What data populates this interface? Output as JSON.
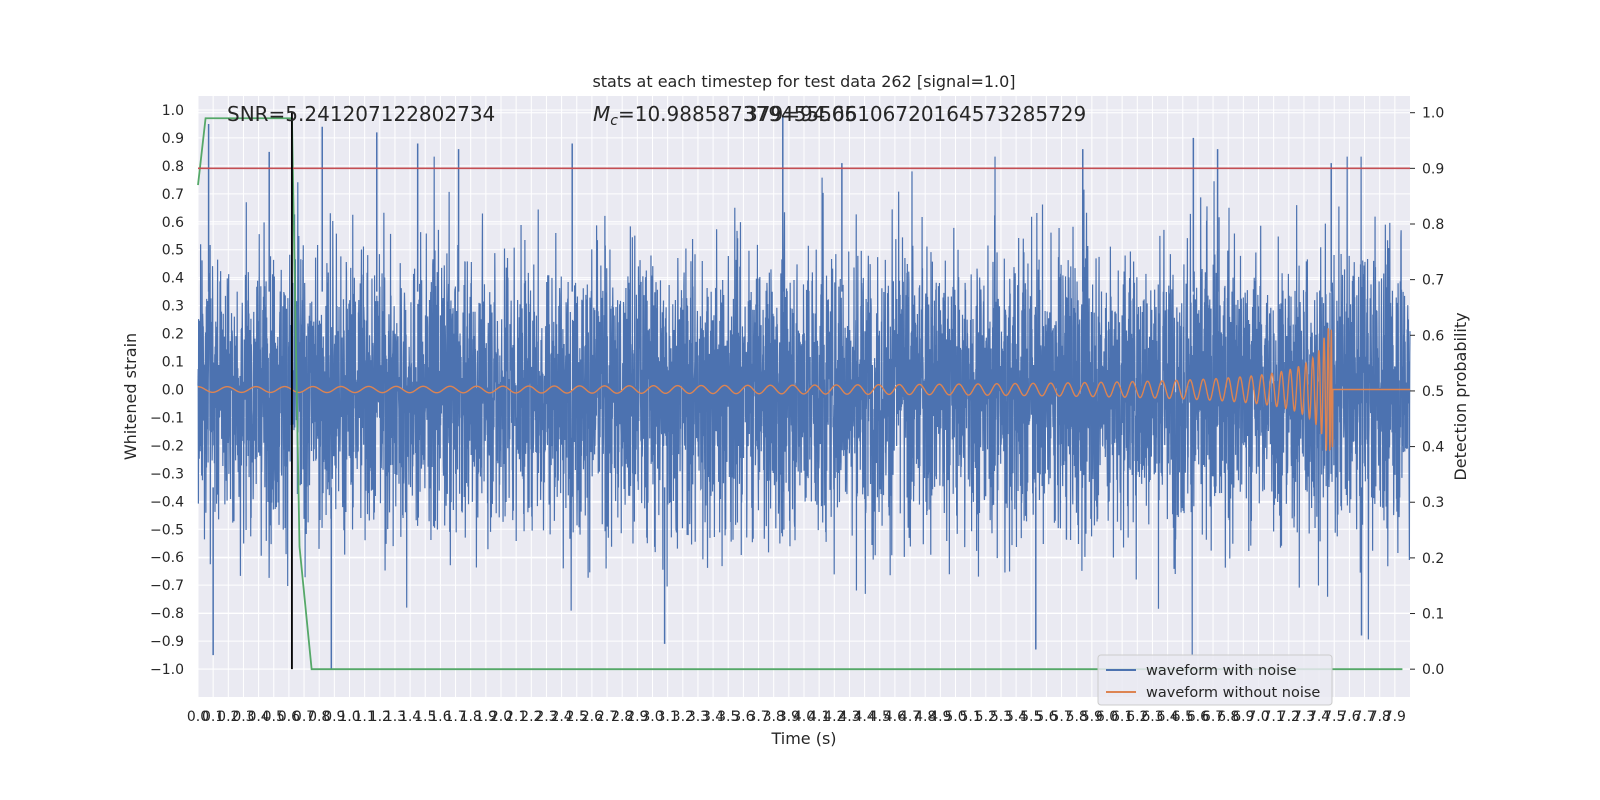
{
  "chart_data": {
    "type": "line",
    "title": "stats at each timestep for test data 262 [signal=1.0]",
    "xlabel": "Time (s)",
    "ylabel_left": "Whitened strain",
    "ylabel_right": "Detection probability",
    "xlim": [
      0.0,
      8.0
    ],
    "ylim_left": [
      -1.1,
      1.05
    ],
    "ylim_right": [
      -0.05,
      1.03
    ],
    "grid": true,
    "x_tick_step": 0.1,
    "x_tick_max": 7.9,
    "y_left_ticks": [
      -1.0,
      -0.9,
      -0.8,
      -0.7,
      -0.6,
      -0.5,
      -0.4,
      -0.3,
      -0.2,
      -0.1,
      0.0,
      0.1,
      0.2,
      0.3,
      0.4,
      0.5,
      0.6,
      0.7,
      0.8,
      0.9,
      1.0
    ],
    "y_right_ticks": [
      0.0,
      0.1,
      0.2,
      0.3,
      0.4,
      0.5,
      0.6,
      0.7,
      0.8,
      0.9,
      1.0
    ],
    "annotations": {
      "snr": "SNR=5.241207122802734",
      "mc": "=10.988587379455566",
      "mc_symbol": "M",
      "mc_sub": "c",
      "overlap": "=94.05106720164573285729",
      "overlap_prefix": "379"
    },
    "series": [
      {
        "name": "waveform with noise",
        "color": "#4c72b0",
        "axis": "left",
        "description_only": false,
        "envelope": {
          "typical_range": [
            -0.45,
            0.45
          ],
          "min_observed": -1.0,
          "max_observed": 0.98
        },
        "notable_peaks": [
          [
            0.07,
            0.95
          ],
          [
            0.1,
            -0.95
          ],
          [
            0.47,
            0.85
          ],
          [
            0.82,
            0.94
          ],
          [
            0.88,
            -1.0
          ],
          [
            1.18,
            0.92
          ],
          [
            1.45,
            0.88
          ],
          [
            1.72,
            0.86
          ],
          [
            2.47,
            0.88
          ],
          [
            3.08,
            -0.91
          ],
          [
            3.86,
            0.98
          ],
          [
            4.25,
            0.81
          ],
          [
            5.84,
            0.86
          ],
          [
            5.53,
            -0.93
          ],
          [
            6.57,
            0.9
          ],
          [
            6.73,
            0.86
          ],
          [
            7.48,
            0.81
          ],
          [
            7.68,
            -0.88
          ]
        ]
      },
      {
        "name": "waveform without noise",
        "color": "#dd8452",
        "axis": "left",
        "chirp": {
          "start_time": 0.0,
          "merger_time": 7.49,
          "initial_amplitude": 0.01,
          "peak_amplitude": 0.22,
          "peak_min": -0.2,
          "post_merger_value": 0.0
        }
      },
      {
        "name": "detection probability",
        "color": "#55a868",
        "axis": "right",
        "x": [
          0.0,
          0.05,
          0.5,
          0.62,
          0.67,
          0.75,
          7.95
        ],
        "y": [
          0.87,
          0.99,
          0.99,
          0.99,
          0.22,
          0.0,
          0.0
        ]
      }
    ],
    "threshold": {
      "value": 0.9,
      "axis": "right",
      "color": "#c44e52"
    },
    "vertical_marker": {
      "x": 0.62,
      "color": "#000000",
      "from_right": 0.0,
      "to_right": 1.0
    },
    "legend": {
      "location": "lower right",
      "entries": [
        "waveform with noise",
        "waveform without noise"
      ]
    }
  }
}
